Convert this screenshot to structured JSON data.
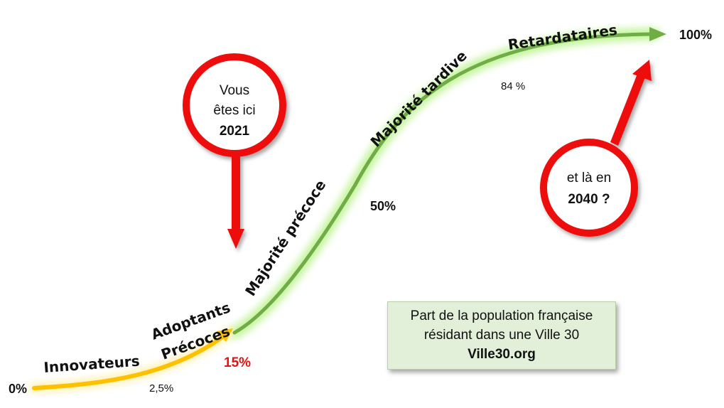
{
  "stages": {
    "innovators": "Innovateurs",
    "early_adopters_line1": "Adoptants",
    "early_adopters_line2": "Précoces",
    "early_majority": "Majorité précoce",
    "late_majority": "Majorité tardive",
    "laggards": "Retardataires"
  },
  "percentages": {
    "start": "0%",
    "innovators_end": "2,5%",
    "early_adopters_end": "15%",
    "early_majority_end": "50%",
    "late_majority_end": "84 %",
    "end": "100%"
  },
  "callout_now": {
    "line1": "Vous",
    "line2": "êtes ici",
    "year": "2021"
  },
  "callout_future": {
    "line1": "et là en",
    "year": "2040 ?"
  },
  "info_box": {
    "line1": "Part de la population française",
    "line2": "résidant dans une Ville 30",
    "site": "Ville30.org"
  },
  "colors": {
    "green_curve": "#70ad47",
    "yellow_curve": "#ffc000",
    "glow": "#c6f5a0",
    "callout_red": "#ee1111",
    "highlight_red": "#e81010",
    "box_fill": "#e2efd9"
  }
}
